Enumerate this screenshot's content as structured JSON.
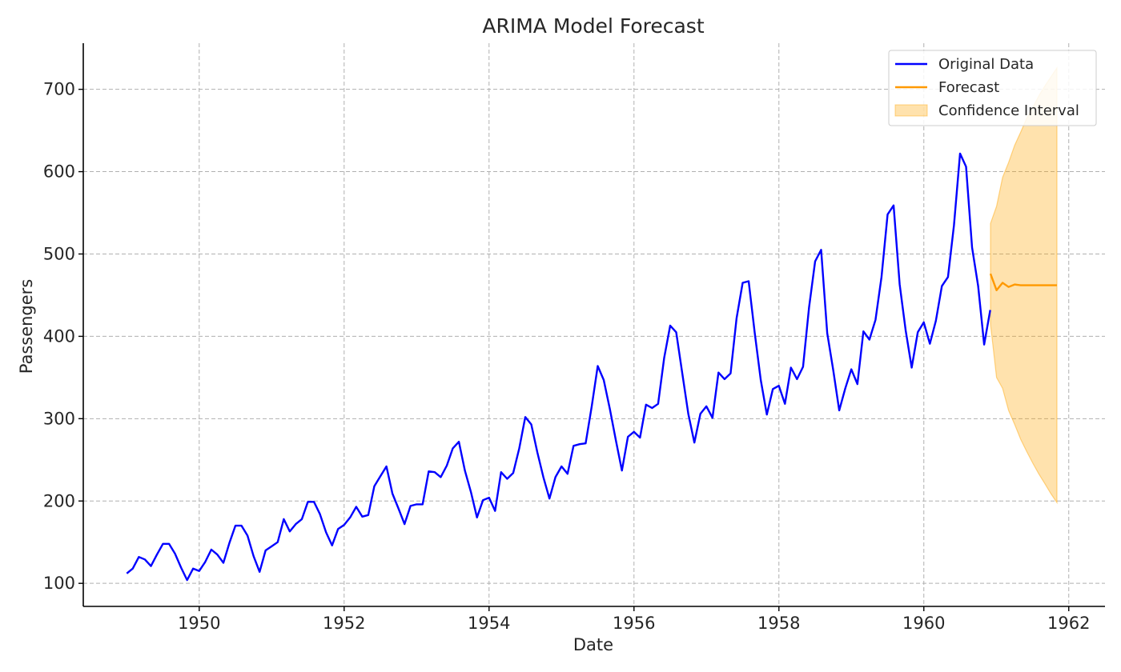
{
  "chart_data": {
    "type": "line",
    "title": "ARIMA Model Forecast",
    "xlabel": "Date",
    "ylabel": "Passengers",
    "xlim": [
      1948.4,
      1962.5
    ],
    "ylim": [
      72,
      756
    ],
    "x_ticks": [
      1950,
      1952,
      1954,
      1956,
      1958,
      1960,
      1962
    ],
    "x_tick_labels": [
      "1950",
      "1952",
      "1954",
      "1956",
      "1958",
      "1960",
      "1962"
    ],
    "y_ticks": [
      100,
      200,
      300,
      400,
      500,
      600,
      700
    ],
    "y_tick_labels": [
      "100",
      "200",
      "300",
      "400",
      "500",
      "600",
      "700"
    ],
    "grid": true,
    "legend_position": "top-right",
    "series": [
      {
        "name": "Original Data",
        "color": "#0000ff",
        "x_start": 1949.0,
        "x_step": 0.08333,
        "values": [
          112,
          118,
          132,
          129,
          121,
          135,
          148,
          148,
          136,
          119,
          104,
          118,
          115,
          126,
          141,
          135,
          125,
          149,
          170,
          170,
          158,
          133,
          114,
          140,
          145,
          150,
          178,
          163,
          172,
          178,
          199,
          199,
          184,
          162,
          146,
          166,
          171,
          180,
          193,
          181,
          183,
          218,
          230,
          242,
          209,
          191,
          172,
          194,
          196,
          196,
          236,
          235,
          229,
          243,
          264,
          272,
          237,
          211,
          180,
          201,
          204,
          188,
          235,
          227,
          234,
          264,
          302,
          293,
          259,
          229,
          203,
          229,
          242,
          233,
          267,
          269,
          270,
          315,
          364,
          347,
          312,
          274,
          237,
          278,
          284,
          277,
          317,
          313,
          318,
          374,
          413,
          405,
          355,
          306,
          271,
          306,
          315,
          301,
          356,
          348,
          355,
          422,
          465,
          467,
          404,
          347,
          305,
          336,
          340,
          318,
          362,
          348,
          363,
          435,
          491,
          505,
          404,
          359,
          310,
          337,
          360,
          342,
          406,
          396,
          420,
          472,
          548,
          559,
          463,
          407,
          362,
          405,
          417,
          391,
          419,
          461,
          472,
          535,
          622,
          606,
          508,
          461,
          390,
          432
        ]
      },
      {
        "name": "Forecast",
        "color": "#ff9900",
        "x_start": 1960.92,
        "x_step": 0.08333,
        "values": [
          476,
          456,
          465,
          460,
          463,
          462,
          462,
          462,
          462,
          462,
          462,
          462
        ]
      }
    ],
    "confidence_interval": {
      "name": "Confidence Interval",
      "color": "#ffa500",
      "x_start": 1960.92,
      "x_step": 0.08333,
      "upper": [
        537,
        558,
        593,
        611,
        632,
        648,
        665,
        678,
        692,
        704,
        715,
        726
      ],
      "lower": [
        415,
        350,
        337,
        310,
        293,
        275,
        260,
        246,
        233,
        221,
        209,
        198
      ]
    }
  }
}
